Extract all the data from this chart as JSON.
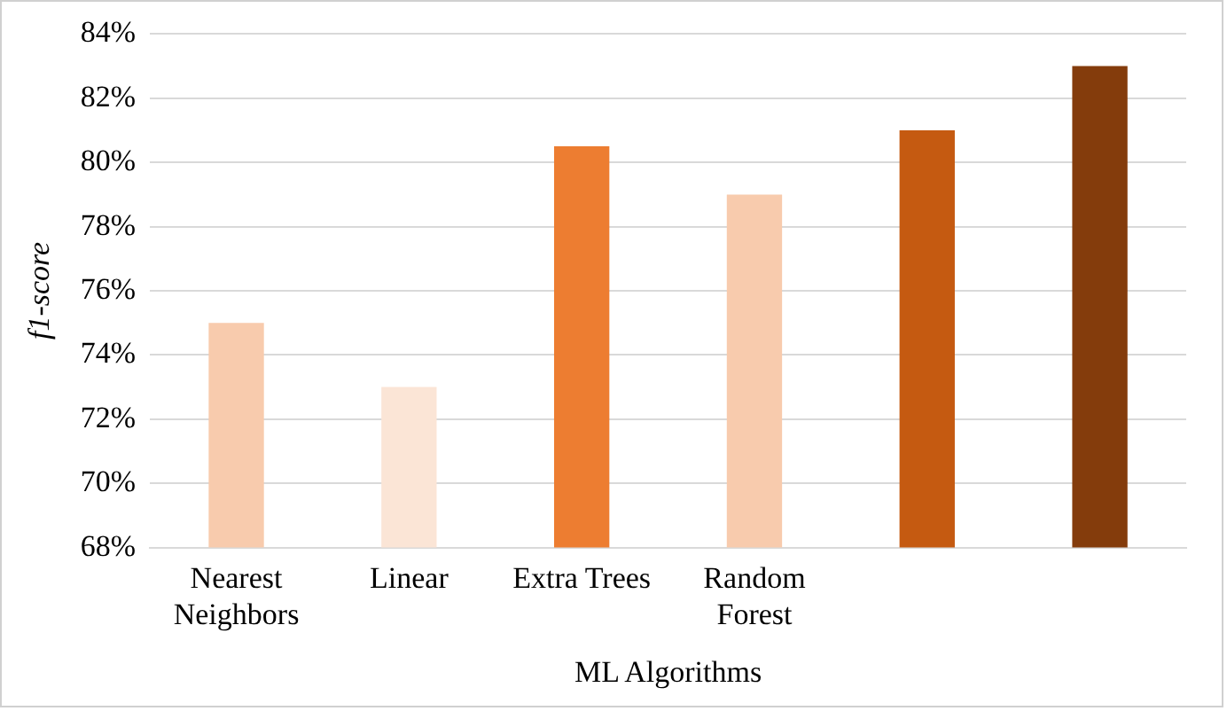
{
  "chart_data": {
    "type": "bar",
    "xlabel": "ML Algorithms",
    "ylabel": "f1-score",
    "categories": [
      [
        "Nearest",
        "Neighbors"
      ],
      "Linear",
      "Extra Trees",
      [
        "Random",
        "Forest"
      ],
      null,
      null
    ],
    "values": [
      75,
      73,
      80.5,
      79,
      81,
      83
    ],
    "colors": [
      "#f8cbad",
      "#fbe5d6",
      "#ed7d31",
      "#f8cbad",
      "#c55a11",
      "#843c0c"
    ],
    "ylim": [
      68,
      84
    ],
    "yticks": [
      {
        "value": 68,
        "label": "68%"
      },
      {
        "value": 70,
        "label": "70%"
      },
      {
        "value": 72,
        "label": "72%"
      },
      {
        "value": 74,
        "label": "74%"
      },
      {
        "value": 76,
        "label": "76%"
      },
      {
        "value": 78,
        "label": "78%"
      },
      {
        "value": 80,
        "label": "80%"
      },
      {
        "value": 82,
        "label": "82%"
      },
      {
        "value": 84,
        "label": "84%"
      }
    ],
    "grid": "y"
  }
}
